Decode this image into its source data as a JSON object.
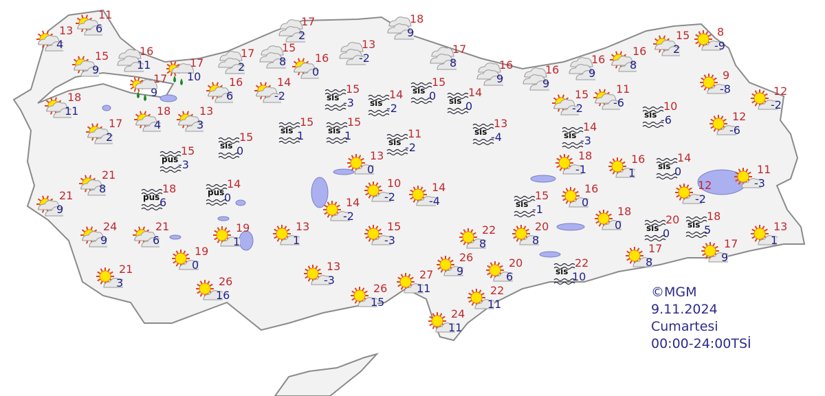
{
  "caption": {
    "source": "©MGM",
    "date": "9.11.2024",
    "day": "Cumartesi",
    "period": "00:00-24:00TSİ"
  },
  "colors": {
    "high": "#c0282d",
    "low": "#1e1e8c",
    "land": "#f2f2f2",
    "border": "#8a8a8a",
    "lake": "#aab0f0"
  },
  "legend_icons": {
    "partly": "partly-cloudy-icon",
    "sunny": "mostly-sunny-icon",
    "cloudy": "cloudy-icon",
    "rain": "rain-icon",
    "fog": "fog-icon",
    "mist": "mist-icon"
  },
  "stations": [
    {
      "type": "partly",
      "high": "11",
      "low": "6"
    },
    {
      "type": "partly",
      "high": "13",
      "low": "4"
    },
    {
      "type": "partly",
      "high": "15",
      "low": "9"
    },
    {
      "type": "cloudy",
      "high": "16",
      "low": "11"
    },
    {
      "type": "rain",
      "high": "17",
      "low": "10"
    },
    {
      "type": "rain",
      "high": "17",
      "low": "9"
    },
    {
      "type": "partly",
      "high": "18",
      "low": "11"
    },
    {
      "type": "partly",
      "high": "16",
      "low": "6"
    },
    {
      "type": "partly",
      "high": "17",
      "low": "2"
    },
    {
      "type": "partly",
      "high": "18",
      "low": "4"
    },
    {
      "type": "partly",
      "high": "13",
      "low": "3"
    },
    {
      "type": "fog",
      "label": "sis",
      "high": "15",
      "low": "0"
    },
    {
      "type": "mist",
      "label": "pus",
      "high": "15",
      "low": "-3"
    },
    {
      "type": "partly",
      "high": "21",
      "low": "8"
    },
    {
      "type": "mist",
      "label": "pus",
      "high": "18",
      "low": "6"
    },
    {
      "type": "mist",
      "label": "pus",
      "high": "14",
      "low": "0"
    },
    {
      "type": "partly",
      "high": "21",
      "low": "9"
    },
    {
      "type": "partly",
      "high": "24",
      "low": "9"
    },
    {
      "type": "partly",
      "high": "21",
      "low": "6"
    },
    {
      "type": "sunny",
      "high": "21",
      "low": "3"
    },
    {
      "type": "sunny",
      "high": "19",
      "low": "1"
    },
    {
      "type": "sunny",
      "high": "19",
      "low": "0"
    },
    {
      "type": "sunny",
      "high": "26",
      "low": "16"
    },
    {
      "type": "cloudy",
      "high": "17",
      "low": "2"
    },
    {
      "type": "cloudy",
      "high": "15",
      "low": "8"
    },
    {
      "type": "cloudy",
      "high": "17",
      "low": "2"
    },
    {
      "type": "partly",
      "high": "16",
      "low": "0"
    },
    {
      "type": "cloudy",
      "high": "13",
      "low": "-2"
    },
    {
      "type": "cloudy",
      "high": "18",
      "low": "9"
    },
    {
      "type": "partly",
      "high": "14",
      "low": "-2"
    },
    {
      "type": "fog",
      "label": "sis",
      "high": "15",
      "low": "-3"
    },
    {
      "type": "fog",
      "label": "sis",
      "high": "14",
      "low": "-2"
    },
    {
      "type": "fog",
      "label": "sis",
      "high": "15",
      "low": "0"
    },
    {
      "type": "fog",
      "label": "sis",
      "high": "14",
      "low": "0"
    },
    {
      "type": "fog",
      "label": "sis",
      "high": "15",
      "low": "1"
    },
    {
      "type": "fog",
      "label": "sis",
      "high": "15",
      "low": "1"
    },
    {
      "type": "fog",
      "label": "sis",
      "high": "11",
      "low": "-2"
    },
    {
      "type": "cloudy",
      "high": "17",
      "low": "8"
    },
    {
      "type": "fog",
      "label": "sis",
      "high": "13",
      "low": "-4"
    },
    {
      "type": "sunny",
      "high": "13",
      "low": "0"
    },
    {
      "type": "sunny",
      "high": "10",
      "low": "-2"
    },
    {
      "type": "sunny",
      "high": "14",
      "low": "-4"
    },
    {
      "type": "sunny",
      "high": "14",
      "low": "-2"
    },
    {
      "type": "sunny",
      "high": "13",
      "low": "1"
    },
    {
      "type": "sunny",
      "high": "15",
      "low": "-3"
    },
    {
      "type": "sunny",
      "high": "13",
      "low": "-3"
    },
    {
      "type": "sunny",
      "high": "26",
      "low": "15"
    },
    {
      "type": "sunny",
      "high": "27",
      "low": "11"
    },
    {
      "type": "sunny",
      "high": "26",
      "low": "9"
    },
    {
      "type": "sunny",
      "high": "22",
      "low": "8"
    },
    {
      "type": "sunny",
      "high": "20",
      "low": "8"
    },
    {
      "type": "sunny",
      "high": "20",
      "low": "6"
    },
    {
      "type": "sunny",
      "high": "22",
      "low": "11"
    },
    {
      "type": "sunny",
      "high": "24",
      "low": "11"
    },
    {
      "type": "cloudy",
      "high": "16",
      "low": "9"
    },
    {
      "type": "cloudy",
      "high": "16",
      "low": "9"
    },
    {
      "type": "cloudy",
      "high": "16",
      "low": "9"
    },
    {
      "type": "partly",
      "high": "16",
      "low": "8"
    },
    {
      "type": "partly",
      "high": "15",
      "low": "2"
    },
    {
      "type": "sunny",
      "high": "8",
      "low": "-9"
    },
    {
      "type": "partly",
      "high": "15",
      "low": "-2"
    },
    {
      "type": "partly",
      "high": "11",
      "low": "-6"
    },
    {
      "type": "fog",
      "label": "sis",
      "high": "10",
      "low": "-6"
    },
    {
      "type": "fog",
      "label": "sis",
      "high": "14",
      "low": "-3"
    },
    {
      "type": "sunny",
      "high": "9",
      "low": "-8"
    },
    {
      "type": "sunny",
      "high": "12",
      "low": "-2"
    },
    {
      "type": "sunny",
      "high": "12",
      "low": "-6"
    },
    {
      "type": "sunny",
      "high": "18",
      "low": "-1"
    },
    {
      "type": "sunny",
      "high": "16",
      "low": "1"
    },
    {
      "type": "fog",
      "label": "sis",
      "high": "14",
      "low": "0"
    },
    {
      "type": "sunny",
      "high": "11",
      "low": "-3"
    },
    {
      "type": "sunny",
      "high": "12",
      "low": "-2"
    },
    {
      "type": "fog",
      "label": "sis",
      "high": "15",
      "low": "-1"
    },
    {
      "type": "sunny",
      "high": "16",
      "low": "0"
    },
    {
      "type": "sunny",
      "high": "18",
      "low": "0"
    },
    {
      "type": "fog",
      "label": "sis",
      "high": "20",
      "low": "0"
    },
    {
      "type": "fog",
      "label": "sis",
      "high": "18",
      "low": "5"
    },
    {
      "type": "sunny",
      "high": "13",
      "low": "1"
    },
    {
      "type": "sunny",
      "high": "17",
      "low": "8"
    },
    {
      "type": "sunny",
      "high": "17",
      "low": "9"
    },
    {
      "type": "fog",
      "label": "sis",
      "high": "22",
      "low": "10"
    }
  ]
}
